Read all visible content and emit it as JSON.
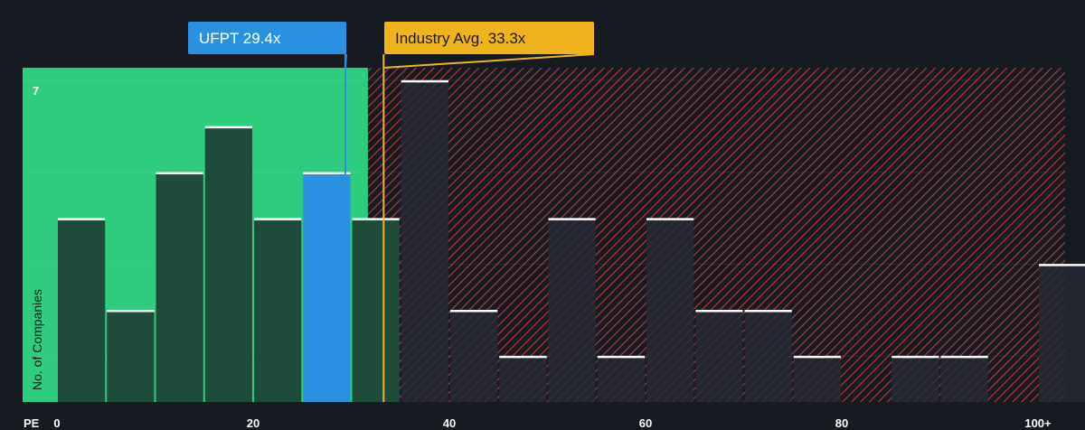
{
  "chart_data": {
    "type": "bar",
    "x_axis_label": "PE",
    "y_axis_label": "No. of Companies",
    "y_max_label": "7",
    "ylim": [
      0,
      7
    ],
    "xlim": [
      0,
      102
    ],
    "x_ticks": [
      {
        "value": 0,
        "label": "0"
      },
      {
        "value": 20,
        "label": "20"
      },
      {
        "value": 40,
        "label": "40"
      },
      {
        "value": 60,
        "label": "60"
      },
      {
        "value": 80,
        "label": "80"
      },
      {
        "value": 100,
        "label": "100+"
      }
    ],
    "bin_width": 5,
    "bins": [
      {
        "x0": 0,
        "value": 4
      },
      {
        "x0": 5,
        "value": 2
      },
      {
        "x0": 10,
        "value": 5
      },
      {
        "x0": 15,
        "value": 6
      },
      {
        "x0": 20,
        "value": 4
      },
      {
        "x0": 25,
        "value": 5,
        "highlight": true
      },
      {
        "x0": 30,
        "value": 4
      },
      {
        "x0": 35,
        "value": 7
      },
      {
        "x0": 40,
        "value": 2
      },
      {
        "x0": 45,
        "value": 1
      },
      {
        "x0": 50,
        "value": 4
      },
      {
        "x0": 55,
        "value": 1
      },
      {
        "x0": 60,
        "value": 4
      },
      {
        "x0": 65,
        "value": 2
      },
      {
        "x0": 70,
        "value": 2
      },
      {
        "x0": 75,
        "value": 1
      },
      {
        "x0": 85,
        "value": 1
      },
      {
        "x0": 90,
        "value": 1
      },
      {
        "x0": 100,
        "value": 3
      }
    ],
    "fair_zone_end": 31.7,
    "company": {
      "label": "UFPT 29.4x",
      "value": 29.4,
      "color": "#2a91e0"
    },
    "industry": {
      "label": "Industry Avg. 33.3x",
      "value": 33.3,
      "color": "#efb41d"
    },
    "colors": {
      "background": "#161b22",
      "fair_zone": "#2ecc7d",
      "bar_in_zone": "#1e4b3a",
      "bar_out_zone": "#242a33",
      "hatch": "#c0393c",
      "bar_cap": "#ffffff",
      "highlight_bar": "#2a91e0"
    }
  }
}
